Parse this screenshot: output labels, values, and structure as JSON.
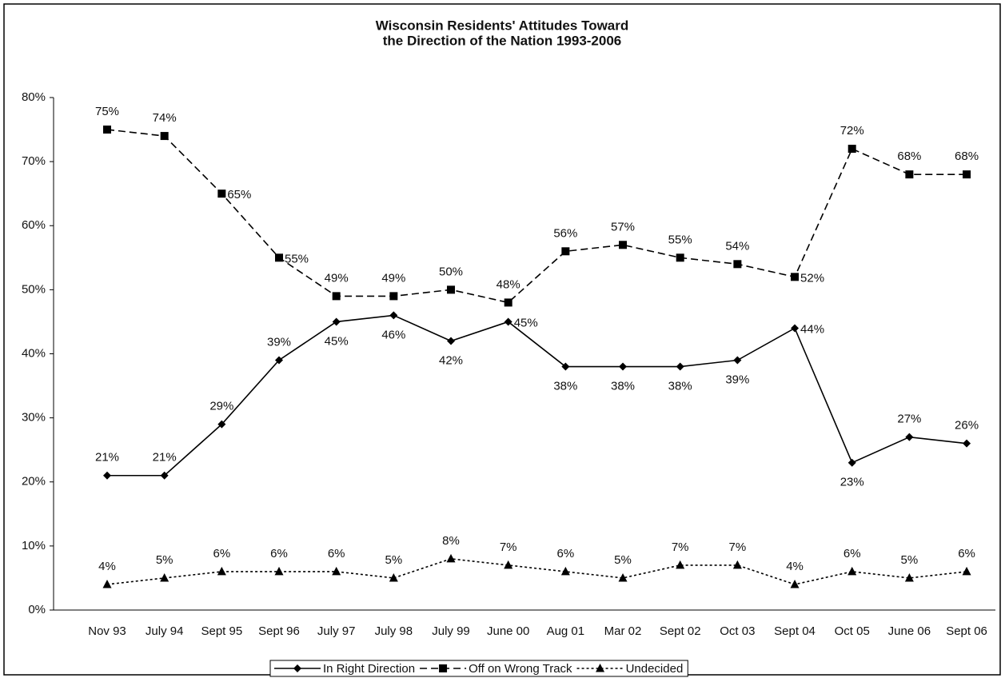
{
  "chart_data": {
    "type": "line",
    "title": [
      "Wisconsin Residents' Attitudes Toward",
      "the Direction of the Nation 1993-2006"
    ],
    "categories": [
      "Nov 93",
      "July 94",
      "Sept 95",
      "Sept 96",
      "July 97",
      "July 98",
      "July 99",
      "June 00",
      "Aug 01",
      "Mar 02",
      "Sept 02",
      "Oct 03",
      "Sept 04",
      "Oct 05",
      "June 06",
      "Sept 06"
    ],
    "ylim": [
      0,
      80
    ],
    "yticks": [
      {
        "value": 0,
        "label": "0%"
      },
      {
        "value": 10,
        "label": "10%"
      },
      {
        "value": 20,
        "label": "20%"
      },
      {
        "value": 30,
        "label": "30%"
      },
      {
        "value": 40,
        "label": "40%"
      },
      {
        "value": 50,
        "label": "50%"
      },
      {
        "value": 60,
        "label": "60%"
      },
      {
        "value": 70,
        "label": "70%"
      },
      {
        "value": 80,
        "label": "80%"
      }
    ],
    "grid": false,
    "legend": "bottom",
    "series": [
      {
        "name": "In Right Direction",
        "color": "#000000",
        "dash": "solid",
        "marker": "diamond",
        "values": [
          21,
          21,
          29,
          39,
          45,
          46,
          42,
          45,
          38,
          38,
          38,
          39,
          44,
          23,
          27,
          26
        ],
        "value_labels": [
          "21%",
          "21%",
          "29%",
          "39%",
          "45%",
          "46%",
          "42%",
          "45%",
          "38%",
          "38%",
          "38%",
          "39%",
          "44%",
          "23%",
          "27%",
          "26%"
        ]
      },
      {
        "name": "Off on Wrong Track",
        "color": "#000000",
        "dash": "dashed",
        "marker": "square",
        "values": [
          75,
          74,
          65,
          55,
          49,
          49,
          50,
          48,
          56,
          57,
          55,
          54,
          52,
          72,
          68,
          68
        ],
        "value_labels": [
          "75%",
          "74%",
          "65%",
          "55%",
          "49%",
          "49%",
          "50%",
          "48%",
          "56%",
          "57%",
          "55%",
          "54%",
          "52%",
          "72%",
          "68%",
          "68%"
        ]
      },
      {
        "name": "Undecided",
        "color": "#000000",
        "dash": "dotted",
        "marker": "triangle",
        "values": [
          4,
          5,
          6,
          6,
          6,
          5,
          8,
          7,
          6,
          5,
          7,
          7,
          4,
          6,
          5,
          6
        ],
        "value_labels": [
          "4%",
          "5%",
          "6%",
          "6%",
          "6%",
          "5%",
          "8%",
          "7%",
          "6%",
          "5%",
          "7%",
          "7%",
          "4%",
          "6%",
          "5%",
          "6%"
        ]
      }
    ]
  }
}
